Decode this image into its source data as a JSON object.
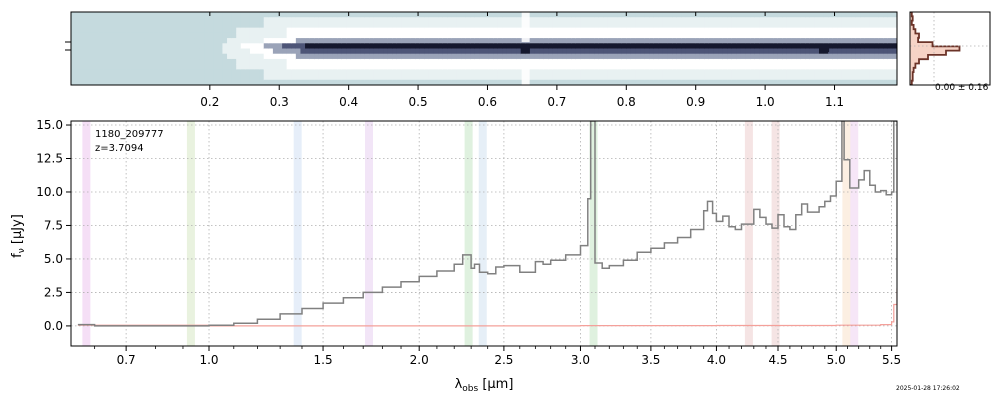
{
  "chart_data": [
    {
      "type": "heatmap",
      "name": "2D spectrum",
      "x_ticks": [
        "0.2",
        "0.3",
        "0.4",
        "0.5",
        "0.6",
        "0.7",
        "0.8",
        "0.9",
        "1.0",
        "1.1"
      ],
      "x_tick_values": [
        0.2,
        0.3,
        0.4,
        0.5,
        0.6,
        0.7,
        0.8,
        0.9,
        1.0,
        1.1
      ],
      "xlim": [
        0.0,
        1.19
      ],
      "colormap": [
        "#c5dade",
        "#e8f1f2",
        "#ffffff",
        "#9aa3b8",
        "#4d5577",
        "#15182e"
      ],
      "bright_columns_x": [
        0.655,
        1.085
      ]
    },
    {
      "type": "histogram",
      "name": "profile",
      "annotation": "0.00 ± 0.16",
      "fill_color": "#f6d3c6",
      "line_color": "#6b3328"
    },
    {
      "type": "line",
      "name": "1D spectrum",
      "annotation_id": "1180_209777",
      "annotation_z": "z=3.7094",
      "xlabel": "λobs [μm]",
      "ylabel": "fν [μJy]",
      "x_ticks": [
        "0.7",
        "1.0",
        "1.5",
        "2.0",
        "2.5",
        "3.0",
        "3.5",
        "4.0",
        "4.5",
        "5.0",
        "5.5"
      ],
      "x_tick_values": [
        0.7,
        1.0,
        1.5,
        2.0,
        2.5,
        3.0,
        3.5,
        4.0,
        4.5,
        5.0,
        5.5
      ],
      "y_ticks": [
        "0.0",
        "2.5",
        "5.0",
        "7.5",
        "10.0",
        "12.5",
        "15.0"
      ],
      "y_tick_values": [
        0.0,
        2.5,
        5.0,
        7.5,
        10.0,
        12.5,
        15.0
      ],
      "ylim": [
        -1.5,
        15.3
      ],
      "x_scale": "x^0.5 (wavelength range 0.53–5.55 μm)",
      "grid": true,
      "series": [
        {
          "color": "#808080",
          "x": [
            0.55,
            0.6,
            0.7,
            0.8,
            0.9,
            1.0,
            1.1,
            1.2,
            1.3,
            1.4,
            1.5,
            1.6,
            1.7,
            1.8,
            1.9,
            2.0,
            2.1,
            2.2,
            2.25,
            2.3,
            2.32,
            2.35,
            2.4,
            2.45,
            2.5,
            2.6,
            2.7,
            2.75,
            2.8,
            2.9,
            3.0,
            3.05,
            3.07,
            3.1,
            3.15,
            3.2,
            3.3,
            3.4,
            3.5,
            3.6,
            3.7,
            3.8,
            3.9,
            3.93,
            3.97,
            4.0,
            4.05,
            4.1,
            4.15,
            4.2,
            4.3,
            4.35,
            4.4,
            4.45,
            4.5,
            4.55,
            4.6,
            4.65,
            4.7,
            4.75,
            4.8,
            4.85,
            4.9,
            4.95,
            5.0,
            5.05,
            5.07,
            5.1,
            5.12,
            5.15,
            5.2,
            5.25,
            5.3,
            5.35,
            5.4,
            5.45,
            5.5,
            5.52,
            5.55
          ],
          "y": [
            0.1,
            0.0,
            0.0,
            0.0,
            0.0,
            0.05,
            0.2,
            0.5,
            0.9,
            1.3,
            1.7,
            2.1,
            2.5,
            2.9,
            3.3,
            3.7,
            4.1,
            4.6,
            5.3,
            4.3,
            4.6,
            4.0,
            3.9,
            4.4,
            4.5,
            4.0,
            4.8,
            4.6,
            4.9,
            5.3,
            6.0,
            9.5,
            15.3,
            4.7,
            4.3,
            4.5,
            4.9,
            5.5,
            5.8,
            6.2,
            6.6,
            7.2,
            8.6,
            9.3,
            8.4,
            7.8,
            8.2,
            7.4,
            7.2,
            7.6,
            8.7,
            8.1,
            7.6,
            7.3,
            8.3,
            7.4,
            7.2,
            8.3,
            9.1,
            8.5,
            8.5,
            8.9,
            9.3,
            9.7,
            10.8,
            15.3,
            12.4,
            12.4,
            10.3,
            10.3,
            10.9,
            11.6,
            10.5,
            10.0,
            10.1,
            9.8,
            10.0,
            15.3,
            15.3
          ],
          "noise_x": [
            0.55,
            1.0,
            2.0,
            3.0,
            4.0,
            5.0,
            5.4,
            5.5,
            5.52,
            5.55
          ],
          "noise_y": [
            0.05,
            0.0,
            0.0,
            0.02,
            0.03,
            0.05,
            0.1,
            0.3,
            1.6,
            2.8
          ],
          "noise_color": "#f4a09a"
        }
      ],
      "line_markers": [
        {
          "x": 0.575,
          "color": "#e9b7ec"
        },
        {
          "x": 0.93,
          "color": "#cfe3b8"
        },
        {
          "x": 1.38,
          "color": "#c7d9f2"
        },
        {
          "x": 1.73,
          "color": "#e3c5ee"
        },
        {
          "x": 2.285,
          "color": "#b7e0b7"
        },
        {
          "x": 2.37,
          "color": "#c7dcee"
        },
        {
          "x": 3.09,
          "color": "#b7e0b7"
        },
        {
          "x": 4.26,
          "color": "#e8c4c4"
        },
        {
          "x": 4.48,
          "color": "#e8c4c4"
        },
        {
          "x": 5.09,
          "color": "#f8dcbf"
        },
        {
          "x": 5.16,
          "color": "#ecc8ee"
        }
      ],
      "timestamp": "2025-01-28 17:26:02"
    }
  ]
}
